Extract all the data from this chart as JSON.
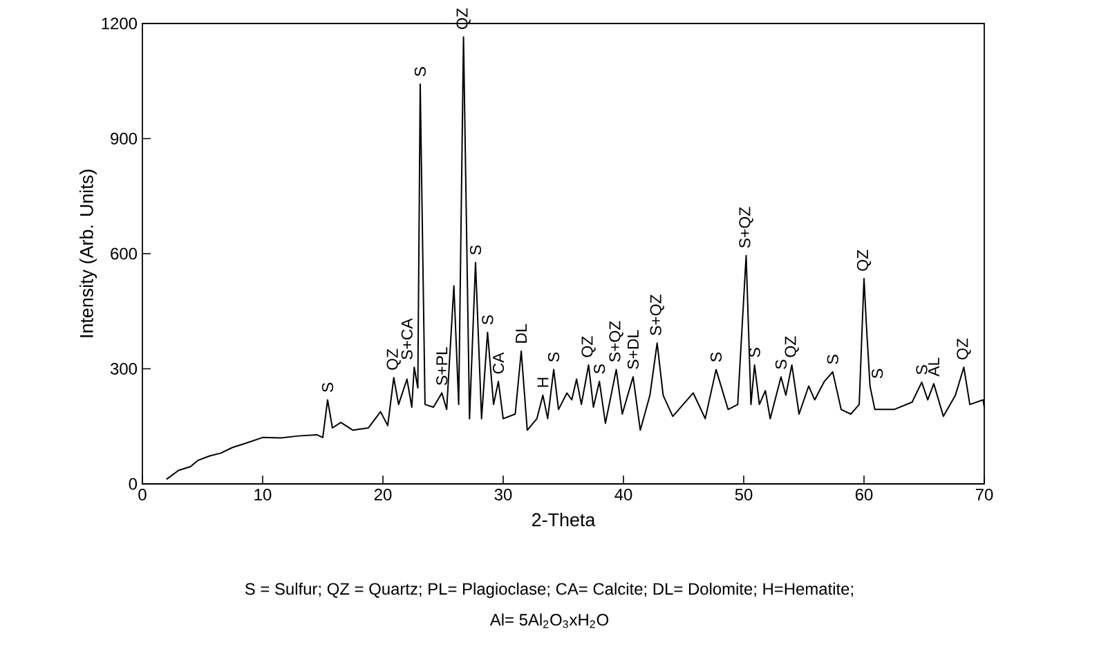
{
  "chart_data": {
    "type": "line",
    "xlabel": "2-Theta",
    "ylabel": "Intensity (Arb. Units)",
    "xlim": [
      0,
      70
    ],
    "xticks": [
      0,
      10,
      20,
      30,
      40,
      50,
      60,
      70
    ],
    "ylim": [
      0,
      1200
    ],
    "yticks": [
      0,
      300,
      600,
      900,
      1200
    ],
    "grid": false,
    "series": [
      {
        "color": "#000000",
        "x": [
          2.0,
          3.0,
          4.0,
          4.6,
          5.6,
          6.5,
          7.5,
          8.5,
          10.0,
          11.5,
          13.0,
          14.5,
          15.0,
          15.4,
          15.8,
          16.5,
          17.5,
          18.8,
          19.8,
          20.4,
          20.9,
          21.3,
          22.0,
          22.4,
          22.6,
          22.9,
          23.1,
          23.5,
          24.2,
          24.9,
          25.3,
          25.9,
          26.3,
          26.7,
          27.2,
          27.7,
          28.2,
          28.7,
          29.2,
          29.6,
          30.0,
          31.0,
          31.5,
          32.0,
          32.8,
          33.3,
          33.7,
          34.2,
          34.6,
          35.3,
          35.7,
          36.1,
          36.5,
          37.1,
          37.5,
          38.0,
          38.5,
          39.4,
          39.9,
          40.8,
          41.4,
          42.2,
          42.8,
          43.3,
          44.1,
          45.8,
          46.8,
          47.7,
          48.7,
          49.5,
          50.2,
          50.6,
          50.9,
          51.3,
          51.8,
          52.2,
          53.1,
          53.5,
          54.0,
          54.6,
          55.4,
          55.9,
          56.7,
          57.4,
          58.1,
          58.9,
          59.6,
          60.0,
          60.2,
          60.5,
          60.9,
          62.5,
          64.0,
          64.8,
          65.3,
          65.8,
          66.6,
          67.6,
          68.3,
          68.8,
          69.9,
          70.0
        ],
        "values": [
          12,
          35,
          45,
          61,
          73,
          80,
          95,
          105,
          121,
          120,
          125,
          128,
          121,
          219,
          146,
          160,
          140,
          146,
          188,
          152,
          277,
          207,
          273,
          200,
          304,
          250,
          1042,
          207,
          200,
          237,
          194,
          516,
          207,
          1165,
          170,
          577,
          170,
          395,
          207,
          267,
          170,
          182,
          346,
          140,
          170,
          231,
          170,
          298,
          194,
          237,
          219,
          273,
          207,
          310,
          200,
          267,
          158,
          298,
          182,
          279,
          140,
          231,
          367,
          231,
          176,
          237,
          170,
          298,
          194,
          207,
          595,
          207,
          310,
          207,
          243,
          170,
          279,
          231,
          310,
          182,
          255,
          219,
          267,
          292,
          194,
          182,
          207,
          535,
          413,
          255,
          194,
          194,
          213,
          265,
          219,
          261,
          176,
          231,
          304,
          207,
          219,
          200
        ]
      }
    ],
    "annotations": [
      {
        "text": "S",
        "x": 15.4,
        "y": 219
      },
      {
        "text": "QZ",
        "x": 20.9,
        "y": 277
      },
      {
        "text": "S+CA",
        "x": 22.6,
        "y": 304
      },
      {
        "text": "S",
        "x": 23.1,
        "y": 1042
      },
      {
        "text": "S+PL",
        "x": 24.9,
        "y": 237
      },
      {
        "text": "QZ",
        "x": 26.7,
        "y": 1165
      },
      {
        "text": "S",
        "x": 27.7,
        "y": 577
      },
      {
        "text": "S",
        "x": 28.7,
        "y": 395
      },
      {
        "text": "CA",
        "x": 29.6,
        "y": 267
      },
      {
        "text": "DL",
        "x": 31.5,
        "y": 346
      },
      {
        "text": "H",
        "x": 33.3,
        "y": 231
      },
      {
        "text": "S",
        "x": 34.2,
        "y": 298
      },
      {
        "text": "QZ",
        "x": 37.1,
        "y": 310
      },
      {
        "text": "S",
        "x": 38.0,
        "y": 267
      },
      {
        "text": "S+QZ",
        "x": 39.4,
        "y": 298
      },
      {
        "text": "S+DL",
        "x": 40.8,
        "y": 279
      },
      {
        "text": "S+QZ",
        "x": 42.8,
        "y": 367
      },
      {
        "text": "S",
        "x": 47.7,
        "y": 298
      },
      {
        "text": "S+QZ",
        "x": 50.2,
        "y": 595
      },
      {
        "text": "S",
        "x": 50.9,
        "y": 310
      },
      {
        "text": "S",
        "x": 53.1,
        "y": 279
      },
      {
        "text": "QZ",
        "x": 54.0,
        "y": 310
      },
      {
        "text": "S",
        "x": 57.4,
        "y": 292
      },
      {
        "text": "QZ",
        "x": 60.0,
        "y": 535
      },
      {
        "text": "S",
        "x": 60.5,
        "y": 255
      },
      {
        "text": "S",
        "x": 64.8,
        "y": 265
      },
      {
        "text": "AL",
        "x": 65.8,
        "y": 261
      },
      {
        "text": "QZ",
        "x": 68.3,
        "y": 304
      },
      "S = Sulfur; QZ = Quartz; PL= Plagioclase; CA= Calcite; DL= Dolomite; H=Hematite;",
      "Al= 5Al$_{2}$O$_{3}$xH$_{2}$O"
    ]
  }
}
